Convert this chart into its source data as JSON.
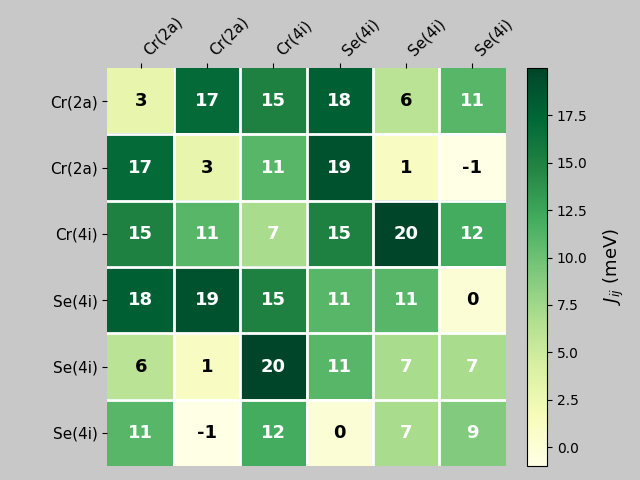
{
  "labels": [
    "Cr(2a)",
    "Cr(2a)",
    "Cr(4i)",
    "Se(4i)",
    "Se(4i)",
    "Se(4i)"
  ],
  "matrix": [
    [
      3,
      17,
      15,
      18,
      6,
      11
    ],
    [
      17,
      3,
      11,
      19,
      1,
      -1
    ],
    [
      15,
      11,
      7,
      15,
      20,
      12
    ],
    [
      18,
      19,
      15,
      11,
      11,
      0
    ],
    [
      6,
      1,
      20,
      11,
      7,
      7
    ],
    [
      11,
      -1,
      12,
      0,
      7,
      9
    ]
  ],
  "vmin": -1,
  "vmax": 20,
  "cmap": "YlGn",
  "colorbar_label": "$J_{ij}$ (meV)",
  "colorbar_ticks": [
    0.0,
    2.5,
    5.0,
    7.5,
    10.0,
    12.5,
    15.0,
    17.5
  ],
  "figsize": [
    6.4,
    4.8
  ],
  "dpi": 100,
  "bg_color": "#c8c8c8",
  "text_threshold": 0.38
}
